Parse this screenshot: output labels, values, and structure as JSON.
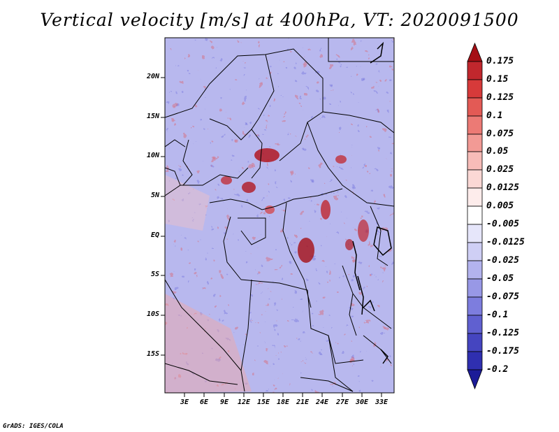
{
  "title": "Vertical velocity [m/s] at 400hPa, VT: 2020091500",
  "y_axis_labels": [
    "20N",
    "15N",
    "10N",
    "5N",
    "EQ",
    "5S",
    "10S",
    "15S"
  ],
  "x_axis_labels": [
    "3E",
    "6E",
    "9E",
    "12E",
    "15E",
    "18E",
    "21E",
    "24E",
    "27E",
    "30E",
    "33E"
  ],
  "colorbar": {
    "labels": [
      "0.175",
      "0.15",
      "0.125",
      "0.1",
      "0.075",
      "0.05",
      "0.025",
      "0.0125",
      "0.005",
      "-0.005",
      "-0.0125",
      "-0.025",
      "-0.05",
      "-0.075",
      "-0.1",
      "-0.125",
      "-0.175",
      "-0.2"
    ],
    "colors": [
      "#a50f15",
      "#c1272d",
      "#d73a3a",
      "#e35a55",
      "#ec7a75",
      "#f29a95",
      "#f7bcb8",
      "#fbd8d5",
      "#fdeceb",
      "#ffffff",
      "#e6e6fa",
      "#cfcff5",
      "#b3b3ee",
      "#9898e6",
      "#7d7dde",
      "#6060d0",
      "#4545c0",
      "#2f2fb0",
      "#1b1b98"
    ],
    "units": "m/s"
  },
  "footer": "GrADS: IGES/COLA"
}
